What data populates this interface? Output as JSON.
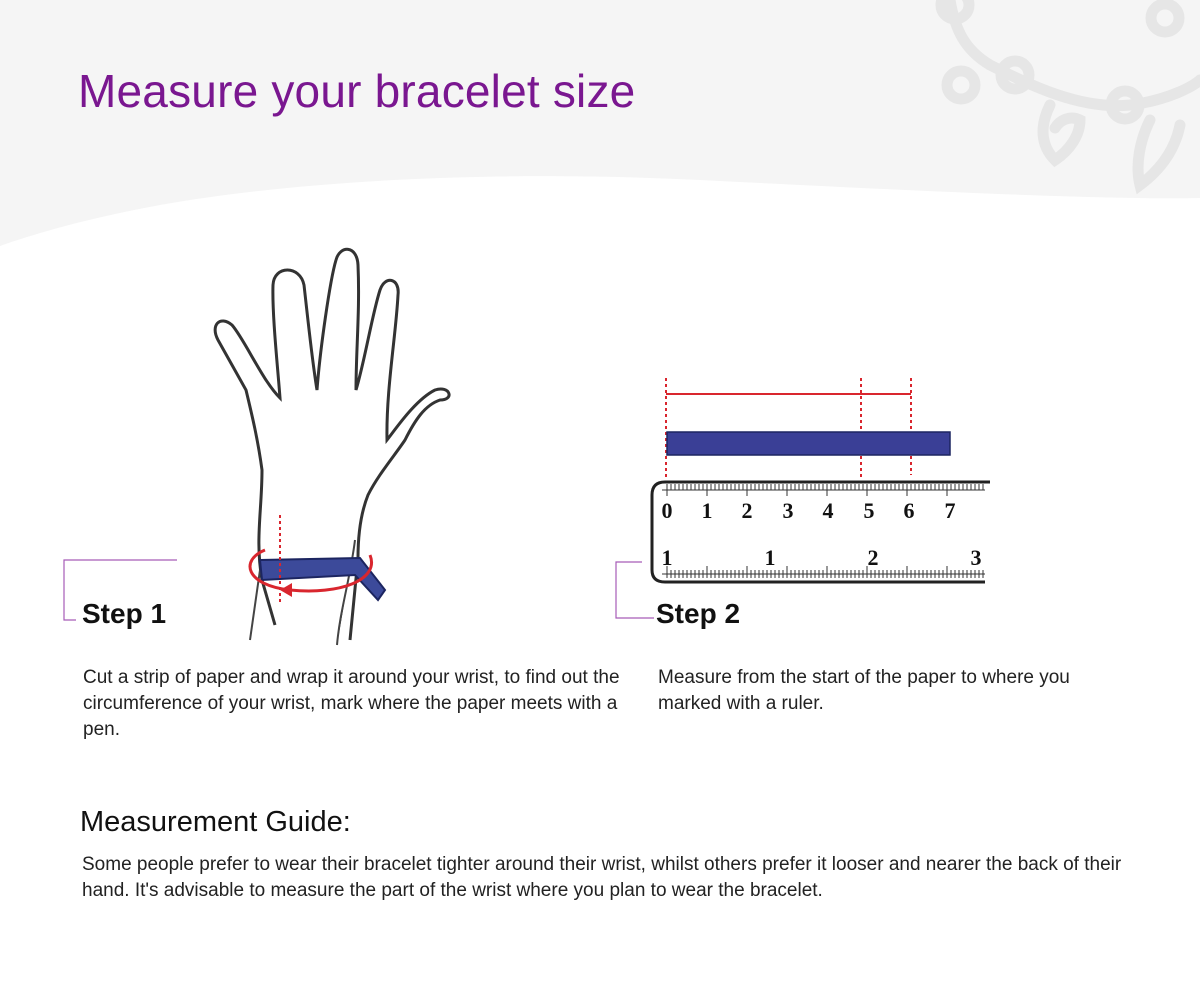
{
  "header": {
    "title": "Measure your bracelet size",
    "decoration": "bracelet-charm-watermark",
    "background_color": "#f5f5f5",
    "title_color": "#7a1790"
  },
  "step1": {
    "label": "Step 1",
    "description": "Cut a strip of paper and wrap it around your wrist, to find out the circumference of your wrist, mark where the paper meets with a pen.",
    "illustration": "hand-with-paper-strip-around-wrist"
  },
  "step2": {
    "label": "Step 2",
    "description": "Measure from the start of the paper to where you marked with a ruler.",
    "illustration": "paper-strip-on-ruler",
    "ruler_cm_labels": [
      "0",
      "1",
      "2",
      "3",
      "4",
      "5",
      "6",
      "7"
    ],
    "ruler_inch_labels": [
      "1",
      "1",
      "2",
      "3"
    ]
  },
  "guide": {
    "title": "Measurement Guide:",
    "text": "Some people prefer to wear their bracelet tighter around their wrist, whilst others prefer it looser and nearer the back of their hand. It's advisable to measure the part of the wrist where you plan to wear the bracelet."
  },
  "colors": {
    "strip": "#2e3a8f",
    "marker": "#d9262e",
    "bracket": "#a65cb8"
  }
}
